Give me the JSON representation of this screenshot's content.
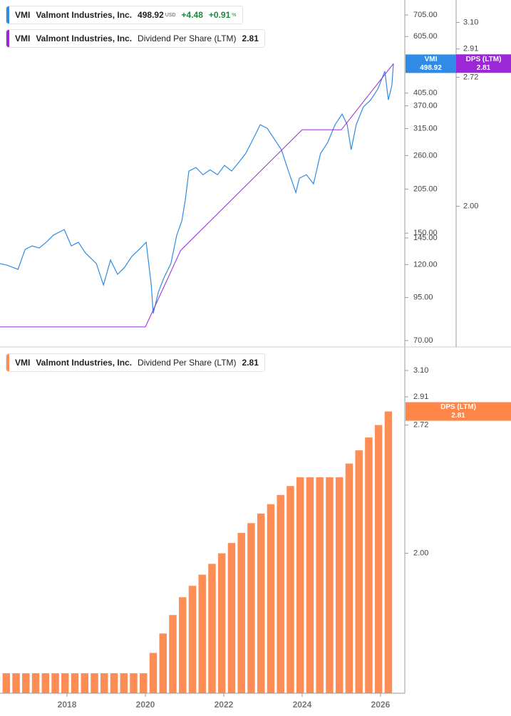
{
  "chart_data": [
    {
      "type": "line",
      "log_scale": true,
      "xlim": [
        2016.29,
        2026.62
      ],
      "ylim": [
        66.9,
        784
      ],
      "yticks": [
        {
          "value": 705,
          "label": "705.00"
        },
        {
          "value": 605,
          "label": "605.00"
        },
        {
          "value": 405,
          "label": "405.00"
        },
        {
          "value": 370,
          "label": "370.00"
        },
        {
          "value": 315,
          "label": "315.00"
        },
        {
          "value": 260,
          "label": "260.00"
        },
        {
          "value": 205,
          "label": "205.00"
        },
        {
          "value": 150,
          "label": "150.00"
        },
        {
          "value": 145,
          "label": "145.00"
        },
        {
          "value": 120,
          "label": "120.00"
        },
        {
          "value": 95,
          "label": "95.00"
        },
        {
          "value": 70,
          "label": "70.00"
        }
      ],
      "y2lim": [
        1.43,
        3.27
      ],
      "y2ticks": [
        {
          "value": 3.1,
          "label": "3.10"
        },
        2.91,
        2.72,
        {
          "value": 2,
          "label": "2.00"
        }
      ],
      "series": [
        {
          "name": "Valmont Industries, Inc.",
          "ticker": "VMI",
          "currency": "USD",
          "change": "+4.48",
          "change_pct": "+0.91",
          "change_pct_unit": "%",
          "color": "#2f8be6",
          "x": [
            2016.29,
            2016.47,
            2016.75,
            2016.93,
            2017.11,
            2017.29,
            2017.47,
            2017.65,
            2017.93,
            2018.11,
            2018.29,
            2018.47,
            2018.75,
            2018.93,
            2019.11,
            2019.29,
            2019.47,
            2019.65,
            2019.84,
            2020.02,
            2020.15,
            2020.2,
            2020.33,
            2020.47,
            2020.65,
            2020.8,
            2020.93,
            2021.02,
            2021.11,
            2021.29,
            2021.47,
            2021.65,
            2021.84,
            2022.02,
            2022.2,
            2022.38,
            2022.56,
            2022.75,
            2022.93,
            2023.11,
            2023.29,
            2023.47,
            2023.65,
            2023.84,
            2023.93,
            2024.11,
            2024.29,
            2024.47,
            2024.65,
            2024.84,
            2025.02,
            2025.15,
            2025.25,
            2025.38,
            2025.56,
            2025.75,
            2025.93,
            2026.11,
            2026.2,
            2026.29,
            2026.33
          ],
          "values": [
            120.8,
            119.5,
            116,
            133.6,
            137,
            135,
            140.6,
            147.8,
            153.9,
            137,
            140.6,
            130.3,
            120.8,
            103.8,
            123.9,
            112,
            117.7,
            127,
            133.6,
            140.6,
            103.8,
            84.8,
            98.6,
            109.1,
            120.8,
            147.8,
            163.6,
            190.4,
            233,
            239,
            227,
            235,
            227,
            242.6,
            233,
            247.5,
            264,
            292.4,
            323.6,
            315.5,
            292.4,
            271,
            233,
            200,
            221.5,
            227,
            212.8,
            264,
            285,
            323.6,
            349,
            323.6,
            271,
            323.6,
            367,
            386,
            416.7,
            473,
            386,
            427.6,
            498.92
          ]
        },
        {
          "name": "Valmont Industries, Inc.",
          "ticker": "VMI",
          "metric": "Dividend Per Share (LTM)",
          "badge_label": "DPS (LTM)",
          "color": "#9b27d6",
          "axis": "y2",
          "x": [
            2016.29,
            2020.0,
            2020.9,
            2024.0,
            2025.0,
            2026.33
          ],
          "values": [
            1.5,
            1.5,
            1.8,
            2.4,
            2.4,
            2.81
          ]
        }
      ]
    },
    {
      "type": "bar",
      "log_scale": true,
      "ticker": "VMI",
      "name": "Valmont Industries, Inc.",
      "metric": "Dividend Per Share (LTM)",
      "badge_label": "DPS (LTM)",
      "color": "#fd8d55",
      "xlim": [
        2016.29,
        2026.62
      ],
      "xticks": [
        2018,
        2020,
        2022,
        2024,
        2026
      ],
      "ylim": [
        1.43,
        3.28
      ],
      "yticks": [
        {
          "value": 3.1,
          "label": "3.10"
        },
        2.91,
        2.72,
        {
          "value": 2,
          "label": "2.00"
        }
      ],
      "x": [
        2016.45,
        2016.7,
        2016.95,
        2017.2,
        2017.45,
        2017.7,
        2017.95,
        2018.2,
        2018.45,
        2018.7,
        2018.95,
        2019.2,
        2019.45,
        2019.7,
        2019.95,
        2020.2,
        2020.45,
        2020.7,
        2020.95,
        2021.2,
        2021.45,
        2021.7,
        2021.95,
        2022.2,
        2022.45,
        2022.7,
        2022.95,
        2023.2,
        2023.45,
        2023.7,
        2023.95,
        2024.2,
        2024.45,
        2024.7,
        2024.95,
        2025.2,
        2025.45,
        2025.7,
        2025.95,
        2026.2
      ],
      "values": [
        1.5,
        1.5,
        1.5,
        1.5,
        1.5,
        1.5,
        1.5,
        1.5,
        1.5,
        1.5,
        1.5,
        1.5,
        1.5,
        1.5,
        1.5,
        1.575,
        1.65,
        1.725,
        1.8,
        1.85,
        1.9,
        1.95,
        2.0,
        2.05,
        2.1,
        2.15,
        2.2,
        2.25,
        2.3,
        2.35,
        2.4,
        2.4,
        2.4,
        2.4,
        2.4,
        2.48,
        2.56,
        2.64,
        2.72,
        2.81
      ]
    }
  ]
}
